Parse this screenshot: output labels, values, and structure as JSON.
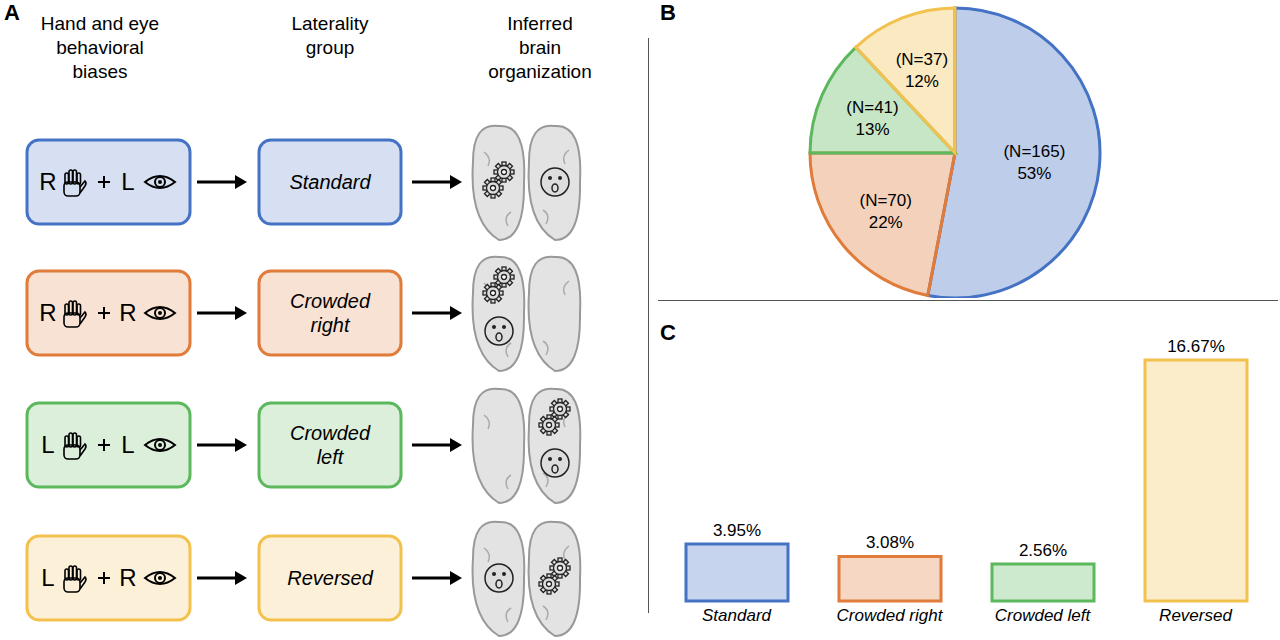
{
  "panels": [
    "A",
    "B",
    "C"
  ],
  "diagram": {
    "headers": [
      "Hand and eye\nbehavioral\nbiases",
      "Laterality\ngroup",
      "Inferred\nbrain\norganization"
    ],
    "rows": [
      {
        "hand": "R",
        "eye": "L",
        "group": "Standard",
        "color": "#4472c4"
      },
      {
        "hand": "R",
        "eye": "R",
        "group": "Crowded right",
        "color": "#e07b39"
      },
      {
        "hand": "L",
        "eye": "L",
        "group": "Crowded left",
        "color": "#5cb85c"
      },
      {
        "hand": "L",
        "eye": "R",
        "group": "Reversed",
        "color": "#f2c14e"
      }
    ]
  },
  "chart_data": [
    {
      "type": "pie",
      "values": [
        53,
        22,
        13,
        12
      ],
      "value_labels": [
        "53%",
        "22%",
        "13%",
        "12%"
      ],
      "n_labels": [
        "(N=165)",
        "(N=70)",
        "(N=41)",
        "(N=37)"
      ],
      "colors": [
        "#4472c4",
        "#e07b39",
        "#5cb85c",
        "#f2c14e"
      ]
    },
    {
      "type": "bar",
      "categories": [
        "Standard",
        "Crowded right",
        "Crowded left",
        "Reversed"
      ],
      "values": [
        3.95,
        3.08,
        2.56,
        16.67
      ],
      "value_labels": [
        "3.95%",
        "3.08%",
        "2.56%",
        "16.67%"
      ],
      "data_labels": true,
      "tick_labels": "x",
      "colors": [
        "#4472c4",
        "#e07b39",
        "#5cb85c",
        "#f2c14e"
      ]
    }
  ]
}
